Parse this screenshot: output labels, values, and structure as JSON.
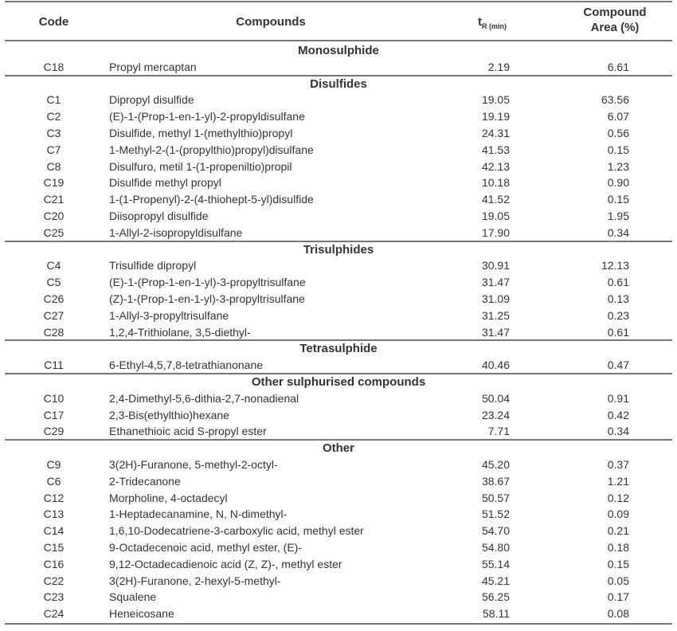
{
  "header": {
    "code": "Code",
    "compounds": "Compounds",
    "tr": {
      "main": "t",
      "sub": "R (min)"
    },
    "area": "Compound Area (%)"
  },
  "sections": [
    {
      "title": "Monosulphide",
      "rows": [
        [
          "C18",
          "Propyl mercaptan",
          "2.19",
          "6.61"
        ]
      ]
    },
    {
      "title": "Disulfides",
      "rows": [
        [
          "C1",
          "Dipropyl disulfide",
          "19.05",
          "63.56"
        ],
        [
          "C2",
          "(E)-1-(Prop-1-en-1-yl)-2-propyldisulfane",
          "19.19",
          "6.07"
        ],
        [
          "C3",
          "Disulfide, methyl 1-(methylthio)propyl",
          "24.31",
          "0.56"
        ],
        [
          "C7",
          "1-Methyl-2-(1-(propylthio)propyl)disulfane",
          "41.53",
          "0.15"
        ],
        [
          "C8",
          "Disulfuro, metil 1-(1-propeniltio)propil",
          "42.13",
          "1.23"
        ],
        [
          "C19",
          "Disulfide  methyl propyl",
          "10.18",
          "0.90"
        ],
        [
          "C21",
          "1-(1-Propenyl)-2-(4-thiohept-5-yl)disulfide",
          "41.52",
          "0.15"
        ],
        [
          "C20",
          "Diisopropyl disulfide",
          "19.05",
          "1.95"
        ],
        [
          "C25",
          "1-Allyl-2-isopropyldisulfane",
          "17.90",
          "0.34"
        ]
      ]
    },
    {
      "title": "Trisulphides",
      "rows": [
        [
          "C4",
          "Trisulfide  dipropyl",
          "30.91",
          "12.13"
        ],
        [
          "C5",
          "(E)-1-(Prop-1-en-1-yl)-3-propyltrisulfane",
          "31.47",
          "0.61"
        ],
        [
          "C26",
          "(Z)-1-(Prop-1-en-1-yl)-3-propyltrisulfane",
          "31.09",
          "0.13"
        ],
        [
          "C27",
          "1-Allyl-3-propyltrisulfane",
          "31.25",
          "0.23"
        ],
        [
          "C28",
          "1,2,4-Trithiolane, 3,5-diethyl-",
          "31.47",
          "0.61"
        ]
      ]
    },
    {
      "title": "Tetrasulphide",
      "rows": [
        [
          "C11",
          "6-Ethyl-4,5,7,8-tetrathianonane",
          "40.46",
          "0.47"
        ]
      ]
    },
    {
      "title": "Other sulphurised compounds",
      "rows": [
        [
          "C10",
          "2,4-Dimethyl-5,6-dithia-2,7-nonadienal",
          "50.04",
          "0.91"
        ],
        [
          "C17",
          "2,3-Bis(ethylthio)hexane",
          "23.24",
          "0.42"
        ],
        [
          "C29",
          "Ethanethioic acid S-propyl ester",
          "7.71",
          "0.34"
        ]
      ]
    },
    {
      "title": "Other",
      "rows": [
        [
          "C9",
          "3(2H)-Furanone, 5-methyl-2-octyl-",
          "45.20",
          "0.37"
        ],
        [
          "C6",
          "2-Tridecanone",
          "38.67",
          "1.21"
        ],
        [
          "C12",
          "Morpholine, 4-octadecyl",
          "50.57",
          "0.12"
        ],
        [
          "C13",
          "1-Heptadecanamine, N, N-dimethyl-",
          "51.52",
          "0.09"
        ],
        [
          "C14",
          "1,6,10-Dodecatriene-3-carboxylic acid, methyl ester",
          "54.70",
          "0.21"
        ],
        [
          "C15",
          "9-Octadecenoic acid, methyl ester, (E)-",
          "54.80",
          "0.18"
        ],
        [
          "C16",
          "9,12-Octadecadienoic acid (Z, Z)-, methyl ester",
          "55.14",
          "0.15"
        ],
        [
          "C22",
          "3(2H)-Furanone, 2-hexyl-5-methyl-",
          "45.21",
          "0.05"
        ],
        [
          "C23",
          "Squalene",
          "56.25",
          "0.17"
        ],
        [
          "C24",
          "Heneicosane",
          "58.11",
          "0.08"
        ]
      ]
    }
  ]
}
